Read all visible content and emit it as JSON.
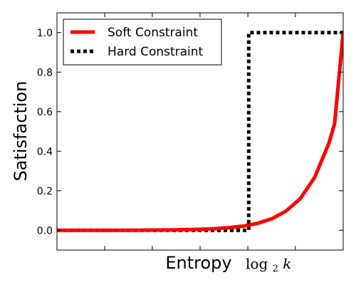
{
  "chart_data": {
    "type": "line",
    "xlabel": "Entropy",
    "ylabel": "Satisfaction",
    "x_marker_label": {
      "base": "log",
      "sub": "2",
      "var": "k"
    },
    "xlim": [
      0,
      1
    ],
    "ylim": [
      -0.1,
      1.1
    ],
    "y_ticks": [
      0.0,
      0.2,
      0.4,
      0.6,
      0.8,
      1.0
    ],
    "y_tick_labels": [
      "0.0",
      "0.2",
      "0.4",
      "0.6",
      "0.8",
      "1.0"
    ],
    "x_ticks": [
      0.167,
      0.333,
      0.5,
      0.667,
      0.833
    ],
    "x_marker": 0.667,
    "legend_position": "top-left",
    "grid": false,
    "series": [
      {
        "name": "Soft Constraint",
        "color": "#ff0000",
        "style": "solid",
        "x": [
          0.0,
          0.1,
          0.2,
          0.3,
          0.4,
          0.5,
          0.55,
          0.6,
          0.65,
          0.7,
          0.75,
          0.8,
          0.85,
          0.9,
          0.95,
          0.97,
          1.0
        ],
        "y": [
          0.0,
          0.0,
          0.0,
          0.001,
          0.002,
          0.005,
          0.008,
          0.013,
          0.021,
          0.035,
          0.058,
          0.097,
          0.16,
          0.267,
          0.44,
          0.54,
          1.0
        ]
      },
      {
        "name": "Hard Constraint",
        "color": "#000000",
        "style": "dotted",
        "x": [
          0.0,
          0.67,
          0.67,
          1.0
        ],
        "y": [
          0.0,
          0.0,
          1.0,
          1.0
        ]
      }
    ]
  }
}
